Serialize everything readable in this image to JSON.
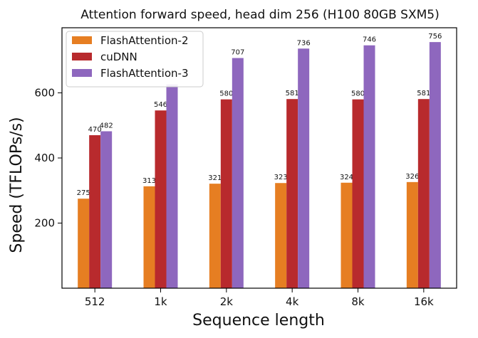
{
  "chart_data": {
    "type": "bar",
    "title": "Attention forward speed, head dim 256 (H100 80GB SXM5)",
    "xlabel": "Sequence length",
    "ylabel": "Speed (TFLOPs/s)",
    "categories": [
      "512",
      "1k",
      "2k",
      "4k",
      "8k",
      "16k"
    ],
    "ylim": [
      0,
      800
    ],
    "yticks": [
      200,
      400,
      600
    ],
    "legend_position": "top-left",
    "grid": false,
    "series": [
      {
        "name": "FlashAttention-2",
        "color": "#E67E22",
        "values": [
          275,
          313,
          321,
          323,
          324,
          326
        ]
      },
      {
        "name": "cuDNN",
        "color": "#B82A2D",
        "values": [
          470,
          546,
          580,
          581,
          580,
          581
        ]
      },
      {
        "name": "FlashAttention-3",
        "color": "#8E67BE",
        "values": [
          482,
          626,
          707,
          736,
          746,
          756
        ]
      }
    ],
    "data_labels": [
      [
        "275",
        "313",
        "321",
        "323",
        "324",
        "326"
      ],
      [
        "470",
        "546",
        "580",
        "581",
        "580",
        "581"
      ],
      [
        "482",
        "",
        "707",
        "736",
        "746",
        "756"
      ]
    ]
  }
}
